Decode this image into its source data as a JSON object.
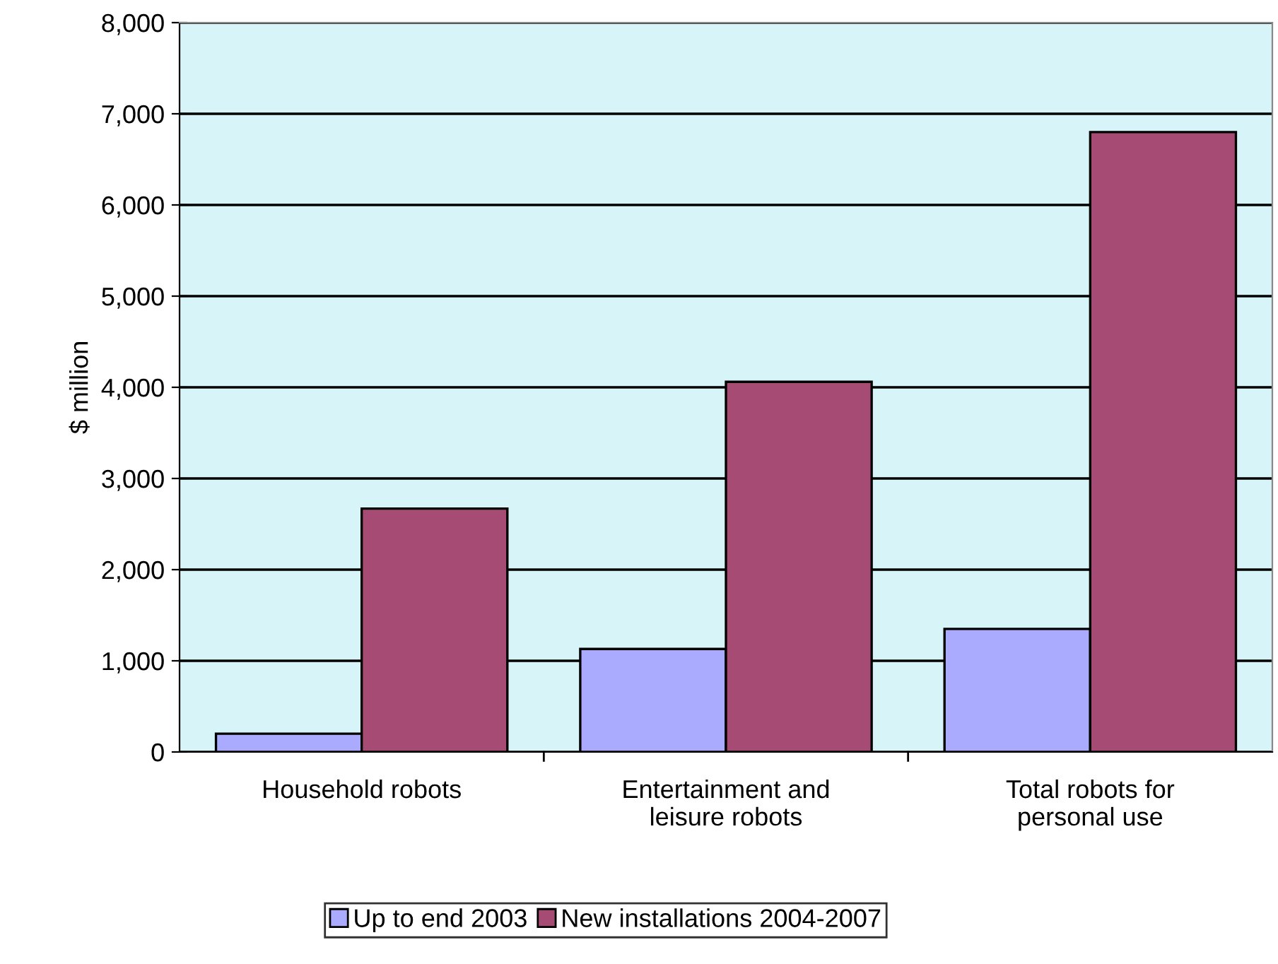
{
  "chart_data": {
    "type": "bar",
    "ylabel": "$ million",
    "categories": [
      "Household robots",
      "Entertainment and\nleisure robots",
      "Total robots for\npersonal use"
    ],
    "series": [
      {
        "name": "Up to end 2003",
        "color": "#aaaaff",
        "values": [
          200,
          1130,
          1350
        ]
      },
      {
        "name": "New installations 2004-2007",
        "color": "#a64c74",
        "values": [
          2670,
          4060,
          6800
        ]
      }
    ],
    "ylim": [
      0,
      8000
    ],
    "yticks": [
      {
        "value": 0,
        "label": "0"
      },
      {
        "value": 1000,
        "label": "1,000"
      },
      {
        "value": 2000,
        "label": "2,000"
      },
      {
        "value": 3000,
        "label": "3,000"
      },
      {
        "value": 4000,
        "label": "4,000"
      },
      {
        "value": 5000,
        "label": "5,000"
      },
      {
        "value": 6000,
        "label": "6,000"
      },
      {
        "value": 7000,
        "label": "7,000"
      },
      {
        "value": 8000,
        "label": "8,000"
      }
    ],
    "grid": "y",
    "legend": "bottom"
  }
}
